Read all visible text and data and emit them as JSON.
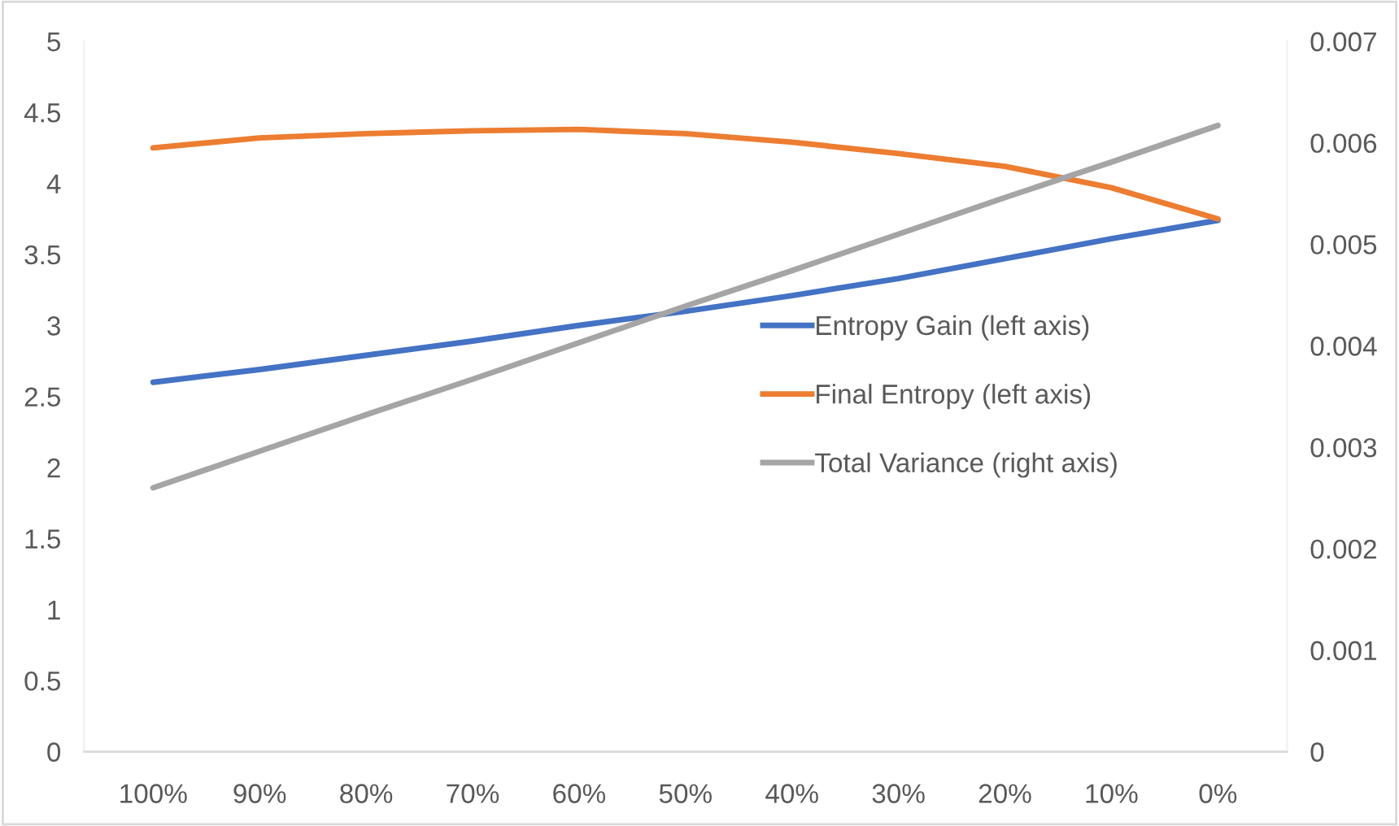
{
  "chart_data": {
    "type": "line",
    "categories": [
      "100%",
      "90%",
      "80%",
      "70%",
      "60%",
      "50%",
      "40%",
      "30%",
      "20%",
      "10%",
      "0%"
    ],
    "series": [
      {
        "name": "Entropy Gain (left axis)",
        "color": "#4472c4",
        "values": [
          2.6,
          2.69,
          2.79,
          2.89,
          3.0,
          3.1,
          3.21,
          3.33,
          3.47,
          3.61,
          3.74
        ]
      },
      {
        "name": "Final Entropy (left axis)",
        "color": "#ed7d31",
        "values": [
          4.25,
          4.32,
          4.35,
          4.37,
          4.38,
          4.35,
          4.29,
          4.21,
          4.12,
          3.97,
          3.75
        ]
      },
      {
        "name": "Total Variance (right axis)",
        "color": "#a5a5a5",
        "axis": "y2",
        "values": [
          0.0026,
          0.00296,
          0.00332,
          0.00367,
          0.00403,
          0.00439,
          0.00474,
          0.0051,
          0.00546,
          0.00581,
          0.00617
        ]
      }
    ],
    "ylim": [
      0,
      5
    ],
    "yticks": [
      0,
      0.5,
      1,
      1.5,
      2,
      2.5,
      3,
      3.5,
      4,
      4.5,
      5
    ],
    "y2lim": [
      0,
      0.007
    ],
    "y2ticks": [
      0,
      0.001,
      0.002,
      0.003,
      0.004,
      0.005,
      0.006,
      0.007
    ],
    "grid": false,
    "legend": "center right",
    "marker": "none",
    "line_style": "solid"
  }
}
